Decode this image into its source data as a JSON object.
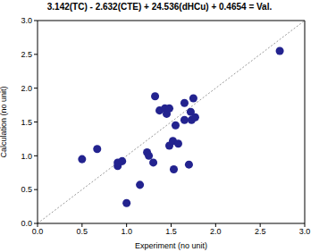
{
  "chart_data": {
    "type": "scatter",
    "title": "3.142(TC) - 2.632(CTE) + 24.536(dHCu) + 0.4654 = Val.",
    "x_label": "Experiment (no unit)",
    "y_label": "Calculation (no unit)",
    "x": [
      0.5,
      0.67,
      0.9,
      0.9,
      0.95,
      1.0,
      1.15,
      1.23,
      1.25,
      1.3,
      1.32,
      1.37,
      1.43,
      1.45,
      1.48,
      1.48,
      1.52,
      1.53,
      1.55,
      1.58,
      1.65,
      1.65,
      1.7,
      1.72,
      1.73,
      1.75,
      1.77,
      2.72
    ],
    "values": [
      0.95,
      1.1,
      0.85,
      0.9,
      0.92,
      0.3,
      0.57,
      1.05,
      1.0,
      0.9,
      1.88,
      1.67,
      1.7,
      1.62,
      1.7,
      1.15,
      1.22,
      0.8,
      1.45,
      1.18,
      1.53,
      1.78,
      0.87,
      1.65,
      1.53,
      1.85,
      1.57,
      2.55
    ],
    "color": "#23238f",
    "marker": "circle",
    "xlim": [
      0,
      3
    ],
    "ylim": [
      0,
      3
    ],
    "xticks": [
      {
        "value": 0,
        "label": "0.0"
      },
      {
        "value": 0.5,
        "label": "0.5"
      },
      {
        "value": 1,
        "label": "1.0"
      },
      {
        "value": 1.5,
        "label": "1.5"
      },
      {
        "value": 2,
        "label": "2.0"
      },
      {
        "value": 2.5,
        "label": "2.5"
      },
      {
        "value": 3,
        "label": "3.0"
      }
    ],
    "yticks": [
      {
        "value": 0,
        "label": "0.0"
      },
      {
        "value": 0.5,
        "label": "0.5"
      },
      {
        "value": 1,
        "label": "1.0"
      },
      {
        "value": 1.5,
        "label": "1.5"
      },
      {
        "value": 2,
        "label": "2.0"
      },
      {
        "value": 2.5,
        "label": "2.5"
      },
      {
        "value": 3,
        "label": "3.0"
      }
    ],
    "grid": false
  }
}
